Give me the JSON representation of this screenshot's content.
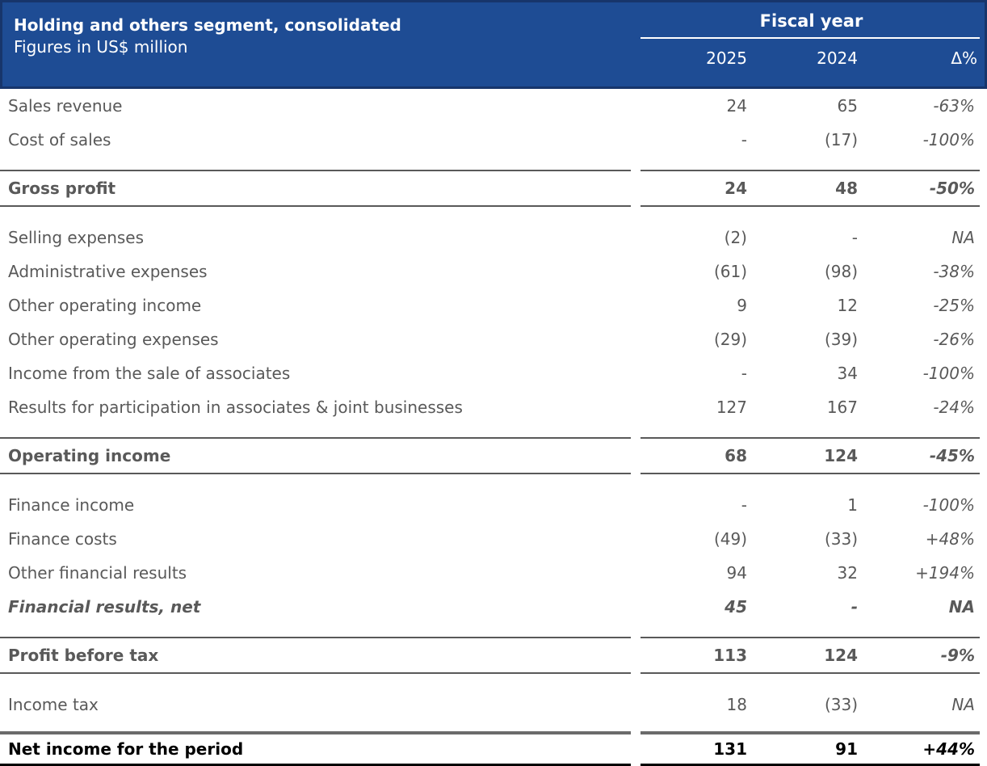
{
  "header": {
    "title": "Holding and others segment, consolidated",
    "subtitle": "Figures in US$ million",
    "fiscal_year_label": "Fiscal year",
    "columns": [
      "2025",
      "2024",
      "Δ%"
    ]
  },
  "colors": {
    "header_bg": "#1e4c94",
    "header_border": "#17356b",
    "header_text": "#ffffff",
    "body_text": "#595959",
    "separator_rule": "#595959",
    "total_text": "#000000",
    "total_top_rule": "#6b6b6b",
    "total_bottom_rule": "#000000"
  },
  "table": {
    "rows": [
      {
        "label": "Sales revenue",
        "fy2025": "24",
        "fy2024": "65",
        "delta": "-63%",
        "style": "normal"
      },
      {
        "label": "Cost of sales",
        "fy2025": "-",
        "fy2024": "(17)",
        "delta": "-100%",
        "style": "normal"
      },
      {
        "label": "Gross profit",
        "fy2025": "24",
        "fy2024": "48",
        "delta": "-50%",
        "style": "subtotal"
      },
      {
        "label": "Selling expenses",
        "fy2025": "(2)",
        "fy2024": "-",
        "delta": "NA",
        "style": "normal"
      },
      {
        "label": "Administrative expenses",
        "fy2025": "(61)",
        "fy2024": "(98)",
        "delta": "-38%",
        "style": "normal"
      },
      {
        "label": "Other operating income",
        "fy2025": "9",
        "fy2024": "12",
        "delta": "-25%",
        "style": "normal"
      },
      {
        "label": "Other operating expenses",
        "fy2025": "(29)",
        "fy2024": "(39)",
        "delta": "-26%",
        "style": "normal"
      },
      {
        "label": "Income from the sale of associates",
        "fy2025": "-",
        "fy2024": "34",
        "delta": "-100%",
        "style": "normal"
      },
      {
        "label": "Results for participation in associates & joint businesses",
        "fy2025": "127",
        "fy2024": "167",
        "delta": "-24%",
        "style": "normal"
      },
      {
        "label": "Operating income",
        "fy2025": "68",
        "fy2024": "124",
        "delta": "-45%",
        "style": "subtotal"
      },
      {
        "label": "Finance income",
        "fy2025": "-",
        "fy2024": "1",
        "delta": "-100%",
        "style": "normal"
      },
      {
        "label": "Finance costs",
        "fy2025": "(49)",
        "fy2024": "(33)",
        "delta": "+48%",
        "style": "normal"
      },
      {
        "label": "Other financial results",
        "fy2025": "94",
        "fy2024": "32",
        "delta": "+194%",
        "style": "normal"
      },
      {
        "label": "Financial results, net",
        "fy2025": "45",
        "fy2024": "-",
        "delta": "NA",
        "style": "bold_italic"
      },
      {
        "label": "Profit before tax",
        "fy2025": "113",
        "fy2024": "124",
        "delta": "-9%",
        "style": "subtotal"
      },
      {
        "label": "Income tax",
        "fy2025": "18",
        "fy2024": "(33)",
        "delta": "NA",
        "style": "normal"
      },
      {
        "label": "Net income for the period",
        "fy2025": "131",
        "fy2024": "91",
        "delta": "+44%",
        "style": "total"
      }
    ]
  }
}
